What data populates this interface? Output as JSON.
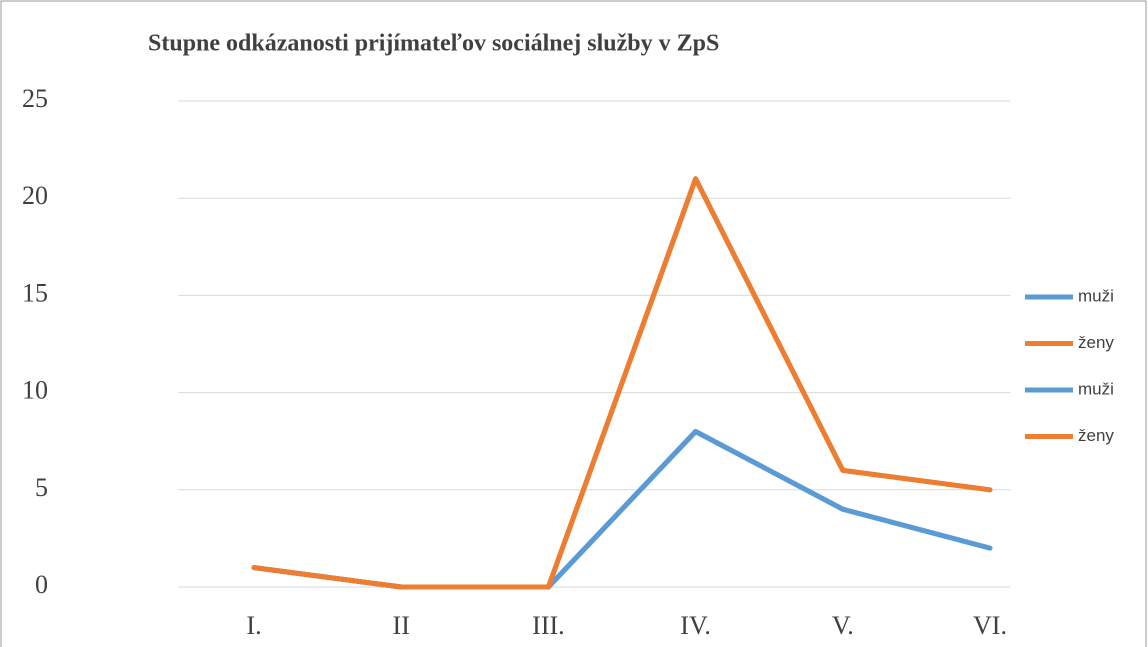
{
  "chart_data": {
    "type": "line",
    "title": "Stupne odkázanosti prijímateľov sociálnej služby v ZpS",
    "categories": [
      "I.",
      "II",
      "III.",
      "IV.",
      "V.",
      "VI."
    ],
    "series": [
      {
        "name": "muži",
        "color": "#5b9bd5",
        "values": [
          1,
          0,
          0,
          8,
          4,
          2
        ]
      },
      {
        "name": "ženy",
        "color": "#ed7d31",
        "values": [
          1,
          0,
          0,
          21,
          6,
          5
        ]
      },
      {
        "name": "muži",
        "color": "#5b9bd5",
        "values": [
          1,
          0,
          0,
          8,
          4,
          2
        ]
      },
      {
        "name": "ženy",
        "color": "#ed7d31",
        "values": [
          1,
          0,
          0,
          21,
          6,
          5
        ]
      }
    ],
    "ylim": [
      0,
      25
    ],
    "yticks": [
      0,
      5,
      10,
      15,
      20,
      25
    ],
    "grid": true,
    "legend": "right"
  }
}
